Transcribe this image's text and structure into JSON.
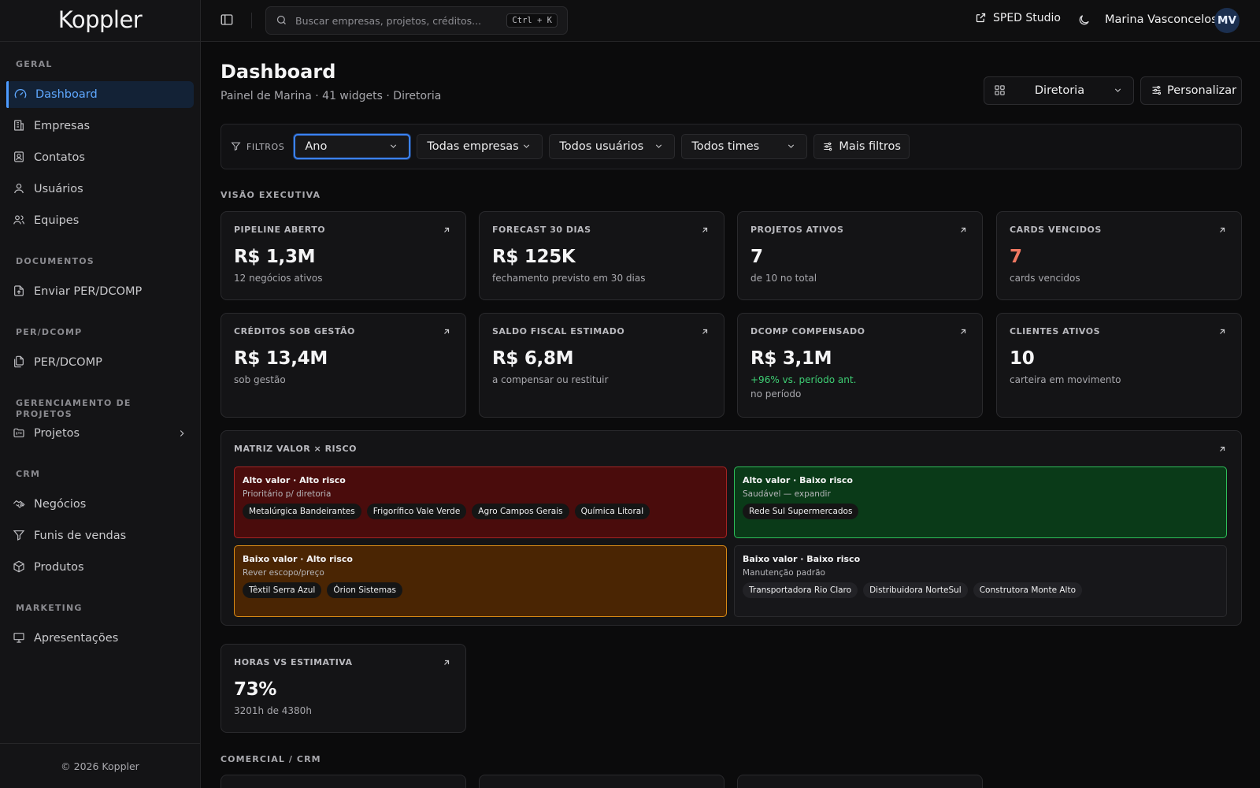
{
  "app": {
    "brand": "Koppler",
    "footer": "© 2026 Koppler"
  },
  "sidebar": {
    "sections": [
      {
        "title": "GERAL",
        "items": [
          "Dashboard",
          "Empresas",
          "Contatos",
          "Usuários",
          "Equipes"
        ]
      },
      {
        "title": "DOCUMENTOS",
        "items": [
          "Enviar PER/DCOMP"
        ]
      },
      {
        "title": "PER/DCOMP",
        "items": [
          "PER/DCOMP"
        ]
      },
      {
        "title": "GERENCIAMENTO DE PROJETOS",
        "items": [
          "Projetos"
        ]
      },
      {
        "title": "CRM",
        "items": [
          "Negócios",
          "Funis de vendas",
          "Produtos"
        ]
      },
      {
        "title": "MARKETING",
        "items": [
          "Apresentações"
        ]
      }
    ],
    "active_item": "Dashboard"
  },
  "topbar": {
    "search_placeholder": "Buscar empresas, projetos, créditos...",
    "search_shortcut": "Ctrl + K",
    "sped_label": "SPED Studio",
    "user_name": "Marina Vasconcelos",
    "user_initials": "MV"
  },
  "page": {
    "title": "Dashboard",
    "subtitle": "Painel de Marina · 41 widgets · Diretoria",
    "view_select": "Diretoria",
    "personalize_label": "Personalizar"
  },
  "filters": {
    "label": "FILTROS",
    "period": "Ano",
    "companies": "Todas empresas",
    "users": "Todos usuários",
    "teams": "Todos times",
    "more": "Mais filtros"
  },
  "sections": {
    "executive": "VISÃO EXECUTIVA",
    "commercial": "COMERCIAL / CRM"
  },
  "kpis": [
    {
      "title": "PIPELINE ABERTO",
      "value": "R$ 1,3M",
      "sub": "12 negócios ativos"
    },
    {
      "title": "FORECAST 30 DIAS",
      "value": "R$ 125K",
      "sub": "fechamento previsto em 30 dias"
    },
    {
      "title": "PROJETOS ATIVOS",
      "value": "7",
      "sub": "de 10 no total"
    },
    {
      "title": "CARDS VENCIDOS",
      "value": "7",
      "sub": "cards vencidos",
      "value_color": "#f07862"
    },
    {
      "title": "CRÉDITOS SOB GESTÃO",
      "value": "R$ 13,4M",
      "sub": "sob gestão"
    },
    {
      "title": "SALDO FISCAL ESTIMADO",
      "value": "R$ 6,8M",
      "sub": "a compensar ou restituir"
    },
    {
      "title": "DCOMP COMPENSADO",
      "value": "R$ 3,1M",
      "delta": "+96% vs. período ant.",
      "sub": "no período",
      "delta_color": "#3ecf74"
    },
    {
      "title": "CLIENTES ATIVOS",
      "value": "10",
      "sub": "carteira em movimento"
    }
  ],
  "matrix": {
    "title": "MATRIZ VALOR × RISCO",
    "quadrants": [
      {
        "title": "Alto valor · Alto risco",
        "sub": "Prioritário p/ diretoria",
        "chips": [
          "Metalúrgica Bandeirantes",
          "Frigorífico Vale Verde",
          "Agro Campos Gerais",
          "Química Litoral"
        ],
        "color": "#a62424"
      },
      {
        "title": "Alto valor · Baixo risco",
        "sub": "Saudável — expandir",
        "chips": [
          "Rede Sul Supermercados"
        ],
        "color": "#2fbf5b"
      },
      {
        "title": "Baixo valor · Alto risco",
        "sub": "Rever escopo/preço",
        "chips": [
          "Têxtil Serra Azul",
          "Órion Sistemas"
        ],
        "color": "#d98b16"
      },
      {
        "title": "Baixo valor · Baixo risco",
        "sub": "Manutenção padrão",
        "chips": [
          "Transportadora Rio Claro",
          "Distribuidora NorteSul",
          "Construtora Monte Alto"
        ],
        "color": "#2a2a2d"
      }
    ]
  },
  "hours": {
    "title": "HORAS VS ESTIMATIVA",
    "value": "73%",
    "sub": "3201h de 4380h"
  },
  "icons": {
    "sidebar": [
      "gauge-icon",
      "building-icon",
      "contact-icon",
      "user-icon",
      "users-icon",
      "file-upload-icon",
      "files-icon",
      "folder-kanban-icon",
      "handshake-icon",
      "filter-icon",
      "package-icon",
      "presentation-icon"
    ],
    "arrow": "arrow-up-right-icon"
  }
}
